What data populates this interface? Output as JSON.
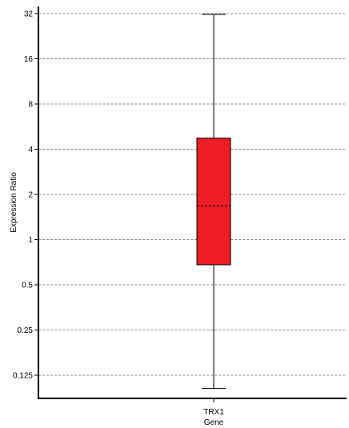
{
  "chart_data": {
    "type": "box",
    "ylabel": "Expression Ratio",
    "xlabel": "Gene",
    "y_scale": "log2",
    "ylim": [
      0.1,
      32
    ],
    "grid": true,
    "y_ticks": [
      {
        "value": 32,
        "label": "32"
      },
      {
        "value": 16,
        "label": "16"
      },
      {
        "value": 8,
        "label": "8"
      },
      {
        "value": 4,
        "label": "4"
      },
      {
        "value": 2,
        "label": "2"
      },
      {
        "value": 1,
        "label": "1"
      },
      {
        "value": 0.5,
        "label": "0.5"
      },
      {
        "value": 0.25,
        "label": "0.25"
      },
      {
        "value": 0.125,
        "label": "0.125"
      }
    ],
    "categories": [
      "TRX1"
    ],
    "boxes": [
      {
        "category": "TRX1",
        "whisker_low": 0.102,
        "q1": 0.68,
        "median": 1.68,
        "q3": 4.74,
        "whisker_high": 31.6,
        "color": "#ee1c25"
      }
    ]
  }
}
